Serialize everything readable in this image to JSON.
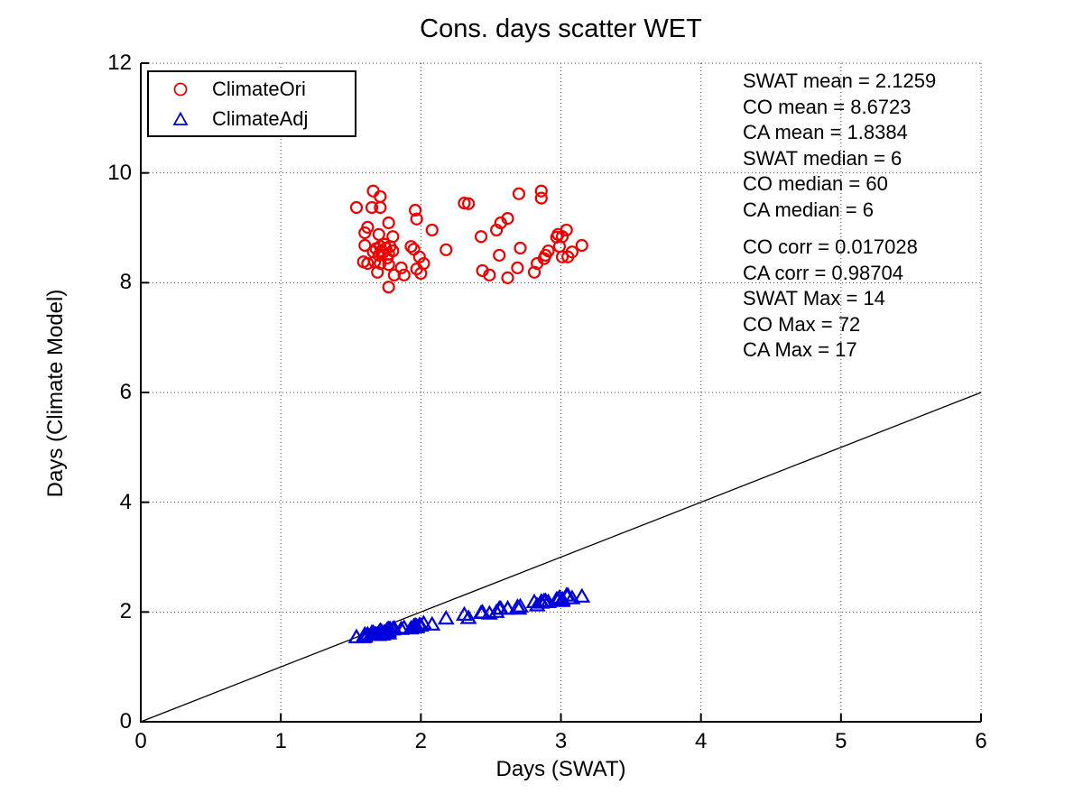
{
  "title": "Cons. days scatter WET",
  "axes": {
    "xlabel": "Days (SWAT)",
    "ylabel": "Days (Climate Model)"
  },
  "legend": {
    "items": [
      {
        "label": "ClimateOri",
        "marker": "circle",
        "color": "#ee0000"
      },
      {
        "label": "ClimateAdj",
        "marker": "triangle",
        "color": "#0000dd"
      }
    ]
  },
  "stats": {
    "block1": [
      "SWAT mean = 2.1259",
      "CO mean = 8.6723",
      "CA mean = 1.8384",
      "SWAT median = 6",
      "CO median = 60",
      "CA median = 6"
    ],
    "block2": [
      "CO corr = 0.017028",
      "CA corr = 0.98704",
      "SWAT Max = 14",
      "CO Max = 72",
      "CA Max = 17"
    ]
  },
  "chart_data": {
    "type": "scatter",
    "title": "Cons. days scatter WET",
    "xlabel": "Days (SWAT)",
    "ylabel": "Days (Climate Model)",
    "xlim": [
      0,
      6
    ],
    "ylim": [
      0,
      12
    ],
    "xticks": [
      0,
      1,
      2,
      3,
      4,
      5,
      6
    ],
    "yticks": [
      0,
      2,
      4,
      6,
      8,
      10,
      12
    ],
    "grid": "dotted",
    "grid_color": "#444444",
    "legend_position": "top-left",
    "reference_line": {
      "from": [
        0,
        0
      ],
      "to": [
        6,
        6
      ],
      "color": "#000000"
    },
    "annotations": [
      "SWAT mean = 2.1259",
      "CO mean = 8.6723",
      "CA mean = 1.8384",
      "SWAT median = 6",
      "CO median = 60",
      "CA median = 6",
      "CO corr = 0.017028",
      "CA corr = 0.98704",
      "SWAT Max = 14",
      "CO Max = 72",
      "CA Max = 17"
    ],
    "series": [
      {
        "name": "ClimateOri",
        "marker": "circle",
        "color": "#ee0000",
        "points": [
          [
            1.66,
            9.67
          ],
          [
            1.71,
            9.57
          ],
          [
            1.54,
            9.37
          ],
          [
            1.65,
            9.37
          ],
          [
            1.71,
            9.37
          ],
          [
            1.96,
            9.32
          ],
          [
            1.97,
            9.16
          ],
          [
            2.31,
            9.45
          ],
          [
            1.77,
            9.09
          ],
          [
            1.62,
            9.01
          ],
          [
            1.6,
            8.91
          ],
          [
            2.08,
            8.96
          ],
          [
            1.7,
            8.88
          ],
          [
            1.8,
            8.84
          ],
          [
            1.6,
            8.68
          ],
          [
            1.71,
            8.66
          ],
          [
            1.75,
            8.63
          ],
          [
            1.78,
            8.66
          ],
          [
            1.73,
            8.55
          ],
          [
            1.77,
            8.52
          ],
          [
            1.8,
            8.58
          ],
          [
            1.93,
            8.66
          ],
          [
            1.95,
            8.61
          ],
          [
            2.18,
            8.6
          ],
          [
            1.59,
            8.38
          ],
          [
            1.62,
            8.35
          ],
          [
            1.67,
            8.38
          ],
          [
            1.71,
            8.35
          ],
          [
            1.77,
            8.33
          ],
          [
            1.99,
            8.47
          ],
          [
            2.02,
            8.35
          ],
          [
            1.97,
            8.25
          ],
          [
            1.86,
            8.27
          ],
          [
            1.81,
            8.14
          ],
          [
            1.69,
            8.19
          ],
          [
            1.88,
            8.14
          ],
          [
            2.0,
            8.17
          ],
          [
            1.77,
            7.92
          ],
          [
            2.7,
            9.62
          ],
          [
            2.86,
            9.67
          ],
          [
            2.86,
            9.54
          ],
          [
            2.34,
            9.44
          ],
          [
            2.62,
            9.17
          ],
          [
            2.57,
            9.09
          ],
          [
            2.54,
            8.96
          ],
          [
            2.43,
            8.84
          ],
          [
            2.98,
            8.88
          ],
          [
            3.04,
            8.96
          ],
          [
            3.01,
            8.84
          ],
          [
            2.97,
            8.83
          ],
          [
            2.99,
            8.66
          ],
          [
            3.15,
            8.68
          ],
          [
            2.71,
            8.63
          ],
          [
            2.56,
            8.5
          ],
          [
            2.91,
            8.58
          ],
          [
            2.89,
            8.5
          ],
          [
            3.01,
            8.47
          ],
          [
            3.05,
            8.47
          ],
          [
            2.83,
            8.35
          ],
          [
            2.69,
            8.27
          ],
          [
            2.44,
            8.22
          ],
          [
            2.49,
            8.14
          ],
          [
            2.62,
            8.09
          ],
          [
            2.81,
            8.19
          ],
          [
            1.68,
            8.62
          ],
          [
            1.72,
            8.58
          ],
          [
            1.74,
            8.7
          ],
          [
            1.76,
            8.45
          ],
          [
            1.7,
            8.5
          ],
          [
            1.66,
            8.56
          ],
          [
            2.88,
            8.44
          ],
          [
            3.08,
            8.56
          ]
        ]
      },
      {
        "name": "ClimateAdj",
        "marker": "triangle",
        "color": "#0000dd",
        "points": [
          [
            1.66,
            1.62
          ],
          [
            1.71,
            1.59
          ],
          [
            1.54,
            1.54
          ],
          [
            1.65,
            1.62
          ],
          [
            1.71,
            1.6
          ],
          [
            1.96,
            1.75
          ],
          [
            1.97,
            1.74
          ],
          [
            2.31,
            1.95
          ],
          [
            1.77,
            1.61
          ],
          [
            1.62,
            1.58
          ],
          [
            1.6,
            1.59
          ],
          [
            2.08,
            1.77
          ],
          [
            1.7,
            1.62
          ],
          [
            1.8,
            1.69
          ],
          [
            1.6,
            1.55
          ],
          [
            1.71,
            1.63
          ],
          [
            1.75,
            1.63
          ],
          [
            1.78,
            1.69
          ],
          [
            1.73,
            1.59
          ],
          [
            1.77,
            1.65
          ],
          [
            1.8,
            1.68
          ],
          [
            1.93,
            1.7
          ],
          [
            1.95,
            1.74
          ],
          [
            2.18,
            1.88
          ],
          [
            1.59,
            1.54
          ],
          [
            1.62,
            1.59
          ],
          [
            1.67,
            1.59
          ],
          [
            1.71,
            1.66
          ],
          [
            1.77,
            1.61
          ],
          [
            1.99,
            1.76
          ],
          [
            2.02,
            1.79
          ],
          [
            1.97,
            1.72
          ],
          [
            1.86,
            1.69
          ],
          [
            1.81,
            1.7
          ],
          [
            1.69,
            1.59
          ],
          [
            1.88,
            1.71
          ],
          [
            2.0,
            1.75
          ],
          [
            1.77,
            1.69
          ],
          [
            2.7,
            2.06
          ],
          [
            2.86,
            2.17
          ],
          [
            2.86,
            2.19
          ],
          [
            2.34,
            1.89
          ],
          [
            2.62,
            2.06
          ],
          [
            2.57,
            2.06
          ],
          [
            2.54,
            2.0
          ],
          [
            2.43,
            1.98
          ],
          [
            2.98,
            2.22
          ],
          [
            3.04,
            2.3
          ],
          [
            3.01,
            2.2
          ],
          [
            2.97,
            2.23
          ],
          [
            2.99,
            2.26
          ],
          [
            3.15,
            2.28
          ],
          [
            2.71,
            2.1
          ],
          [
            2.56,
            2.06
          ],
          [
            2.91,
            2.18
          ],
          [
            2.89,
            2.2
          ],
          [
            3.01,
            2.23
          ],
          [
            3.05,
            2.3
          ],
          [
            2.83,
            2.12
          ],
          [
            2.69,
            2.09
          ],
          [
            2.44,
            1.99
          ],
          [
            2.49,
            1.97
          ],
          [
            2.62,
            2.06
          ],
          [
            2.81,
            2.18
          ],
          [
            1.68,
            1.59
          ],
          [
            1.72,
            1.64
          ],
          [
            1.74,
            1.63
          ],
          [
            1.76,
            1.68
          ],
          [
            1.7,
            1.58
          ],
          [
            1.66,
            1.6
          ],
          [
            2.88,
            2.2
          ],
          [
            3.08,
            2.25
          ]
        ]
      }
    ]
  }
}
